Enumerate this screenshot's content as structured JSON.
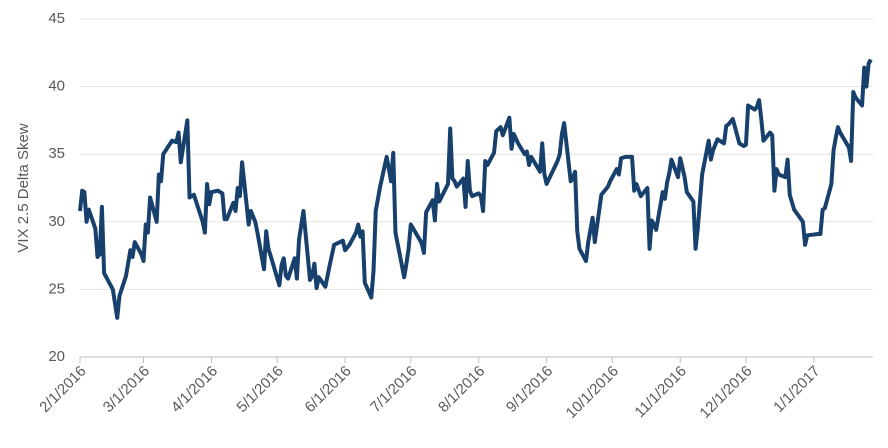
{
  "chart_data": {
    "type": "line",
    "y_label": "VIX 2.5 Delta Skew",
    "x": [
      "2/1/2016",
      "2/2/2016",
      "2/3/2016",
      "2/4/2016",
      "2/5/2016",
      "2/8/2016",
      "2/9/2016",
      "2/10/2016",
      "2/11/2016",
      "2/12/2016",
      "2/16/2016",
      "2/18/2016",
      "2/19/2016",
      "2/22/2016",
      "2/24/2016",
      "2/25/2016",
      "2/26/2016",
      "2/29/2016",
      "3/1/2016",
      "3/2/2016",
      "3/3/2016",
      "3/4/2016",
      "3/7/2016",
      "3/8/2016",
      "3/9/2016",
      "3/10/2016",
      "3/14/2016",
      "3/16/2016",
      "3/17/2016",
      "3/18/2016",
      "3/21/2016",
      "3/22/2016",
      "3/24/2016",
      "3/28/2016",
      "3/29/2016",
      "3/30/2016",
      "3/31/2016",
      "4/1/2016",
      "4/4/2016",
      "4/6/2016",
      "4/7/2016",
      "4/8/2016",
      "4/11/2016",
      "4/12/2016",
      "4/13/2016",
      "4/14/2016",
      "4/15/2016",
      "4/18/2016",
      "4/19/2016",
      "4/21/2016",
      "4/22/2016",
      "4/25/2016",
      "4/26/2016",
      "4/27/2016",
      "4/28/2016",
      "5/2/2016",
      "5/3/2016",
      "5/4/2016",
      "5/5/2016",
      "5/6/2016",
      "5/9/2016",
      "5/10/2016",
      "5/11/2016",
      "5/13/2016",
      "5/16/2016",
      "5/17/2016",
      "5/18/2016",
      "5/19/2016",
      "5/20/2016",
      "5/23/2016",
      "5/25/2016",
      "5/27/2016",
      "5/31/2016",
      "6/1/2016",
      "6/3/2016",
      "6/6/2016",
      "6/7/2016",
      "6/8/2016",
      "6/9/2016",
      "6/10/2016",
      "6/13/2016",
      "6/14/2016",
      "6/15/2016",
      "6/17/2016",
      "6/20/2016",
      "6/22/2016",
      "6/23/2016",
      "6/24/2016",
      "6/28/2016",
      "6/29/2016",
      "6/30/2016",
      "7/1/2016",
      "7/5/2016",
      "7/6/2016",
      "7/7/2016",
      "7/8/2016",
      "7/11/2016",
      "7/12/2016",
      "7/13/2016",
      "7/14/2016",
      "7/18/2016",
      "7/19/2016",
      "7/20/2016",
      "7/21/2016",
      "7/22/2016",
      "7/25/2016",
      "7/26/2016",
      "7/27/2016",
      "7/28/2016",
      "7/29/2016",
      "8/1/2016",
      "8/2/2016",
      "8/3/2016",
      "8/4/2016",
      "8/5/2016",
      "8/8/2016",
      "8/9/2016",
      "8/11/2016",
      "8/12/2016",
      "8/15/2016",
      "8/16/2016",
      "8/17/2016",
      "8/19/2016",
      "8/22/2016",
      "8/23/2016",
      "8/24/2016",
      "8/25/2016",
      "8/29/2016",
      "8/30/2016",
      "8/31/2016",
      "9/1/2016",
      "9/6/2016",
      "9/7/2016",
      "9/8/2016",
      "9/9/2016",
      "9/12/2016",
      "9/13/2016",
      "9/14/2016",
      "9/15/2016",
      "9/16/2016",
      "9/19/2016",
      "9/20/2016",
      "9/22/2016",
      "9/23/2016",
      "9/26/2016",
      "9/29/2016",
      "9/30/2016",
      "10/3/2016",
      "10/4/2016",
      "10/5/2016",
      "10/7/2016",
      "10/10/2016",
      "10/11/2016",
      "10/12/2016",
      "10/14/2016",
      "10/17/2016",
      "10/18/2016",
      "10/19/2016",
      "10/20/2016",
      "10/21/2016",
      "10/24/2016",
      "10/25/2016",
      "10/26/2016",
      "10/27/2016",
      "10/28/2016",
      "10/31/2016",
      "11/1/2016",
      "11/2/2016",
      "11/3/2016",
      "11/4/2016",
      "11/7/2016",
      "11/8/2016",
      "11/9/2016",
      "11/11/2016",
      "11/14/2016",
      "11/15/2016",
      "11/16/2016",
      "11/18/2016",
      "11/21/2016",
      "11/22/2016",
      "11/23/2016",
      "11/25/2016",
      "11/28/2016",
      "11/30/2016",
      "12/1/2016",
      "12/2/2016",
      "12/5/2016",
      "12/6/2016",
      "12/7/2016",
      "12/8/2016",
      "12/9/2016",
      "12/12/2016",
      "12/13/2016",
      "12/14/2016",
      "12/15/2016",
      "12/16/2016",
      "12/19/2016",
      "12/20/2016",
      "12/21/2016",
      "12/23/2016",
      "12/27/2016",
      "12/28/2016",
      "12/29/2016",
      "1/3/2017",
      "1/4/2017",
      "1/5/2017",
      "1/6/2017",
      "1/9/2017",
      "1/10/2017",
      "1/11/2017",
      "1/12/2017",
      "1/13/2017",
      "1/17/2017",
      "1/18/2017",
      "1/19/2017",
      "1/20/2017",
      "1/23/2017",
      "1/24/2017",
      "1/25/2017",
      "1/26/2017",
      "1/27/2017"
    ],
    "series": [
      {
        "color": "#17406d",
        "values": [
          30.8,
          32.3,
          32.2,
          30.0,
          30.9,
          29.5,
          27.4,
          27.6,
          31.1,
          26.2,
          25.0,
          22.9,
          24.5,
          26.0,
          27.9,
          27.4,
          28.5,
          27.6,
          27.1,
          29.8,
          29.2,
          31.8,
          30.0,
          33.5,
          33.0,
          35.0,
          36.0,
          35.9,
          36.6,
          34.4,
          37.5,
          31.8,
          32.0,
          30.0,
          29.2,
          32.8,
          31.3,
          32.2,
          32.3,
          32.1,
          30.2,
          30.2,
          31.4,
          30.8,
          32.5,
          31.9,
          34.4,
          29.8,
          30.8,
          30.0,
          29.2,
          26.5,
          29.3,
          28.0,
          27.5,
          25.3,
          26.8,
          27.3,
          26.0,
          25.8,
          27.3,
          25.8,
          28.7,
          30.8,
          25.7,
          26.0,
          26.9,
          25.1,
          25.9,
          25.2,
          26.8,
          28.3,
          28.6,
          27.9,
          28.3,
          29.2,
          29.8,
          28.9,
          29.3,
          25.5,
          24.4,
          26.4,
          30.8,
          32.6,
          34.8,
          33.0,
          35.1,
          29.2,
          25.9,
          26.9,
          28.0,
          29.8,
          28.7,
          28.4,
          27.7,
          30.7,
          31.6,
          30.1,
          32.8,
          31.5,
          32.8,
          36.9,
          33.2,
          33.0,
          32.6,
          33.2,
          31.1,
          34.5,
          32.3,
          31.9,
          32.1,
          31.9,
          30.8,
          34.5,
          34.2,
          35.1,
          36.7,
          37.0,
          36.4,
          37.7,
          35.4,
          36.5,
          35.8,
          35.0,
          35.2,
          34.2,
          34.8,
          33.7,
          35.8,
          33.5,
          32.8,
          34.5,
          35.0,
          36.5,
          37.3,
          33.0,
          33.2,
          33.7,
          29.3,
          28.0,
          27.1,
          28.5,
          30.3,
          28.5,
          32.0,
          32.6,
          33.0,
          33.9,
          33.5,
          34.7,
          34.8,
          34.8,
          32.3,
          32.8,
          31.9,
          32.5,
          28.0,
          30.1,
          29.8,
          29.4,
          32.2,
          31.7,
          32.9,
          33.6,
          34.6,
          33.3,
          34.7,
          34.0,
          33.3,
          32.2,
          31.5,
          28.0,
          29.5,
          33.5,
          36.0,
          34.6,
          35.3,
          36.1,
          35.8,
          37.1,
          37.2,
          37.6,
          35.8,
          35.6,
          35.7,
          38.6,
          38.3,
          38.5,
          39.0,
          37.6,
          36.0,
          36.6,
          36.4,
          32.3,
          33.9,
          33.5,
          33.3,
          34.6,
          32.0,
          30.9,
          30.0,
          28.3,
          29.0,
          29.1,
          29.1,
          30.9,
          31.0,
          32.8,
          35.3,
          36.2,
          37.0,
          36.6,
          35.5,
          34.5,
          39.6,
          39.2,
          38.6,
          41.4,
          40.0,
          41.7,
          42.0
        ]
      }
    ],
    "xlim": [
      "2/1/2016",
      "1/28/2017"
    ],
    "xticks": [
      "2/1/2016",
      "3/1/2016",
      "4/1/2016",
      "5/1/2016",
      "6/1/2016",
      "7/1/2016",
      "8/1/2016",
      "9/1/2016",
      "10/1/2016",
      "11/1/2016",
      "12/1/2016",
      "1/1/2017"
    ],
    "ylim": [
      20,
      45
    ],
    "yticks": [
      20,
      25,
      30,
      35,
      40,
      45
    ],
    "grid": true
  }
}
